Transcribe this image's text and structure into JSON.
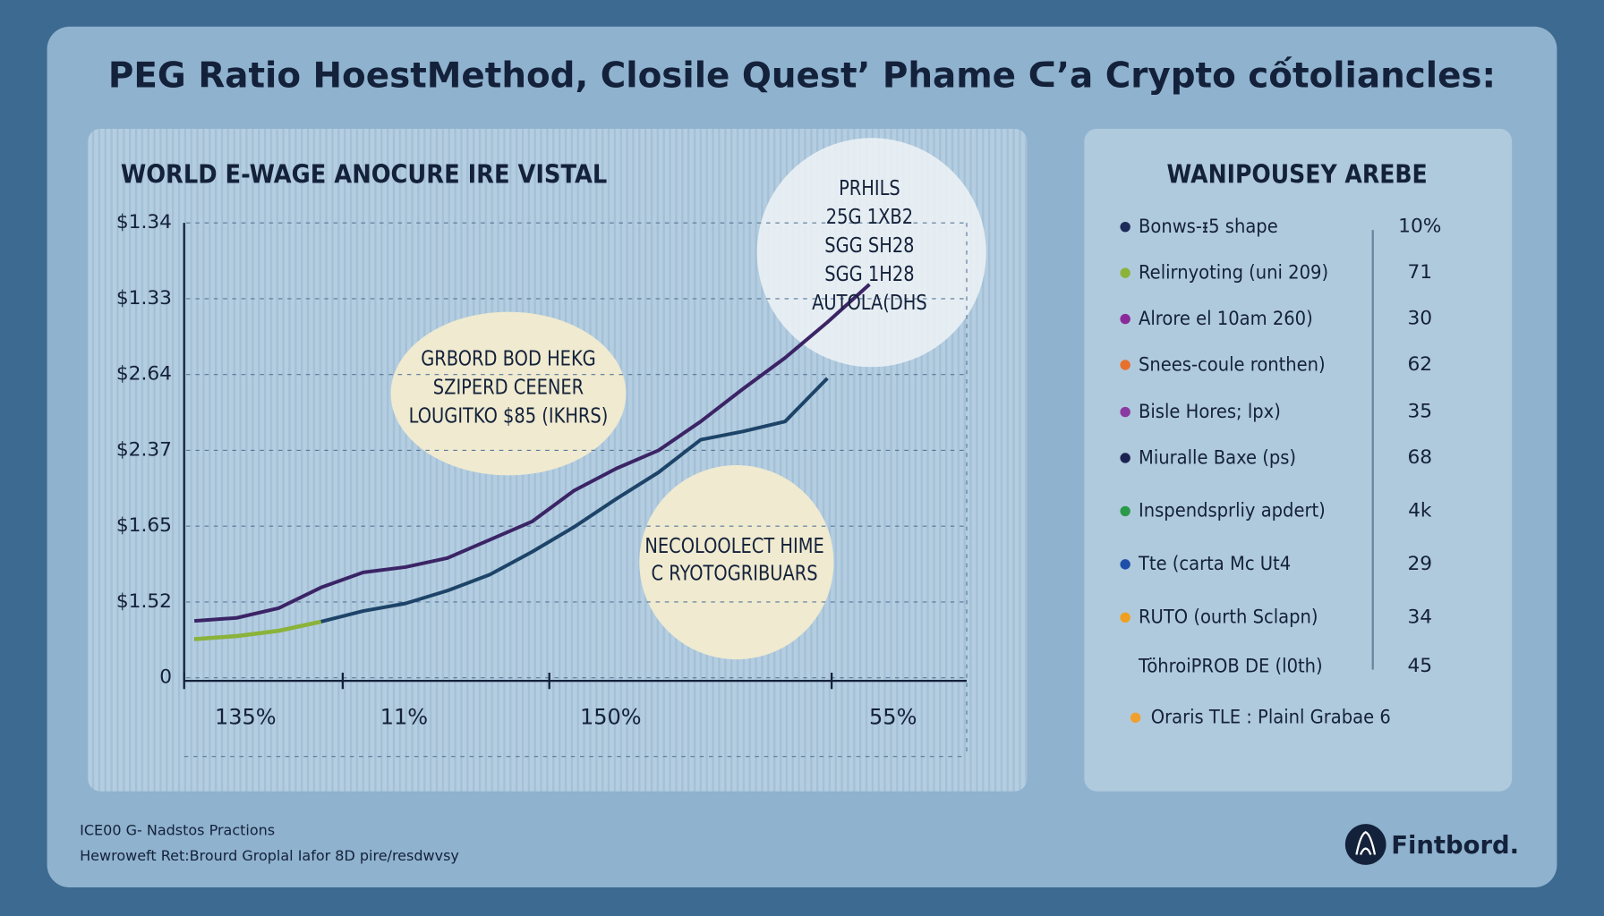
{
  "chart_data": {
    "type": "line",
    "title": "PEG Ratio HoestMethod, Closile Quest’ Phame ᑕ’a Crypto cốtoliancles:",
    "subtitle": "WORLD E-WAGE ANOCURE IRE VISTAL",
    "categories": [
      null,
      null,
      null,
      null,
      null,
      null,
      null,
      null,
      null,
      null,
      null,
      null,
      null,
      null,
      null,
      null,
      null
    ],
    "series": [
      {
        "color": "#3b2466",
        "values": [
          0.75,
          0.79,
          0.92,
          1.19,
          1.39,
          1.46,
          1.58,
          1.82,
          2.06,
          2.47,
          2.76,
          3.0,
          3.38,
          3.81,
          4.22,
          4.69,
          5.19
        ]
      },
      {
        "color": "#1d4468",
        "values": [
          0.51,
          0.55,
          0.62,
          0.74,
          0.88,
          0.98,
          1.15,
          1.36,
          1.66,
          1.99,
          2.36,
          2.71,
          3.14,
          3.25,
          3.38,
          3.95,
          null
        ]
      },
      {
        "color": "#8bb33a",
        "values": [
          0.51,
          0.55,
          0.62,
          0.74,
          null,
          null,
          null,
          null,
          null,
          null,
          null,
          null,
          null,
          null,
          null,
          null,
          null
        ]
      }
    ],
    "ylim": [
      0,
      6
    ],
    "yticks": [
      {
        "value": 0,
        "label": "0"
      },
      {
        "value": 1,
        "label": "$1.52"
      },
      {
        "value": 2,
        "label": "$1.65"
      },
      {
        "value": 3,
        "label": "$2.37"
      },
      {
        "value": 4,
        "label": "$2.64"
      },
      {
        "value": 5,
        "label": "$1.33"
      },
      {
        "value": 6,
        "label": "$1.34"
      }
    ],
    "x_labels": [
      "135%",
      "11%",
      "150%",
      "55%"
    ],
    "annotations": [
      [
        "PRHILS",
        "25G 1XB2",
        "SGG SH28",
        "SGG 1H28",
        "AUTOLA(DHS"
      ],
      [
        "GRBORD BOD HEKG",
        "SZIPERD CEENER",
        "LOUGITKO $85 (IKHRS)"
      ],
      [
        "NECOLOOLECT HIME",
        "C RYOTOGRIBUARS"
      ]
    ]
  },
  "legend": {
    "title": "WANIPOUSEY AREBE",
    "items": [
      {
        "color": "#1d2a5a",
        "label": "Bonws-ᵻ5 shape",
        "value": "10%"
      },
      {
        "color": "#8bb33a",
        "label": "Relirnyoting (uni 209)",
        "value": "71"
      },
      {
        "color": "#8a2a9a",
        "label": "Alrore el 10am 260)",
        "value": "30"
      },
      {
        "color": "#e8702a",
        "label": "Snees-coule ronthen)",
        "value": "62"
      },
      {
        "color": "#8a3aa0",
        "label": "Bisle Hores; lpx)",
        "value": "35"
      },
      {
        "color": "#1d2350",
        "label": "Miuralle Baxe (ps)",
        "value": "68"
      },
      {
        "color": "#2a9a4a",
        "label": "Inspendsprliy apdert)",
        "value": "4k"
      },
      {
        "color": "#1f4fa8",
        "label": "Tte (carta Mc Ut4",
        "value": "29"
      },
      {
        "color": "#f0a020",
        "label": "RUTO (ourth Sclapn)",
        "value": "34"
      },
      {
        "label": "TöhroiPROB DE (l0th)",
        "value": "45"
      }
    ],
    "footer_item": {
      "color": "#f0a030",
      "label": "Oraris TLE : Plainl Grabae 6"
    }
  },
  "footer": {
    "line1": "ICE00 G- Nadstos Practions",
    "line2": "Hewroweft Ret:Brourd Groplal Iafor 8D pire/resdwvsy",
    "brand": "Fintbord."
  }
}
